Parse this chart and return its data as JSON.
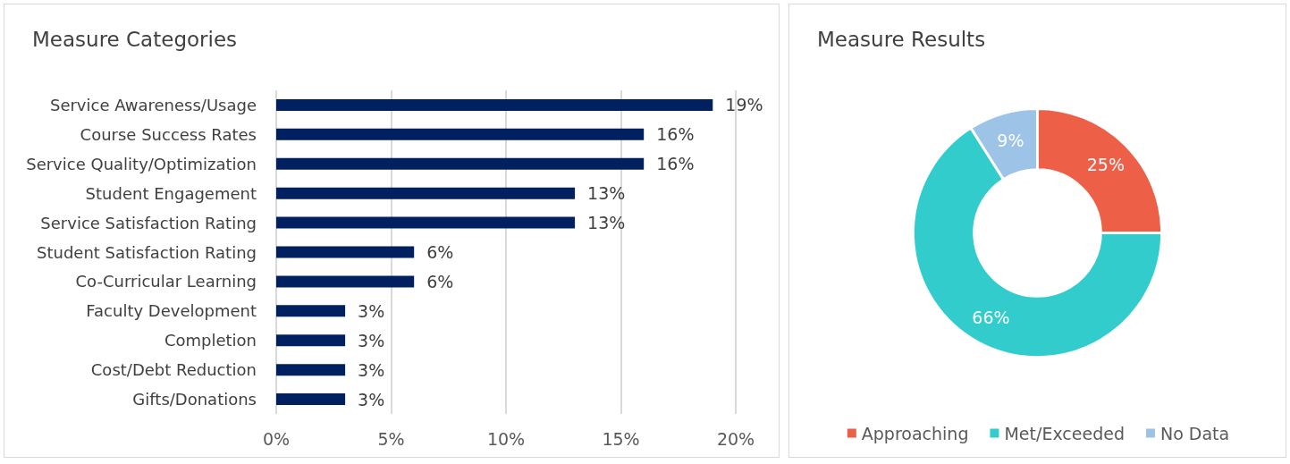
{
  "chart_data": [
    {
      "type": "bar",
      "title": "Measure Categories",
      "orientation": "horizontal",
      "categories": [
        "Service Awareness/Usage",
        "Course Success Rates",
        "Service Quality/Optimization",
        "Student Engagement",
        "Service Satisfaction Rating",
        "Student Satisfaction Rating",
        "Co-Curricular Learning",
        "Faculty Development",
        "Completion",
        "Cost/Debt Reduction",
        "Gifts/Donations"
      ],
      "values": [
        19,
        16,
        16,
        13,
        13,
        6,
        6,
        3,
        3,
        3,
        3
      ],
      "value_labels": [
        "19%",
        "16%",
        "16%",
        "13%",
        "13%",
        "6%",
        "6%",
        "3%",
        "3%",
        "3%",
        "3%"
      ],
      "color": "#002060",
      "xlim": [
        0,
        20
      ],
      "xticks": [
        {
          "value": 0,
          "label": "0%"
        },
        {
          "value": 5,
          "label": "5%"
        },
        {
          "value": 10,
          "label": "10%"
        },
        {
          "value": 15,
          "label": "15%"
        },
        {
          "value": 20,
          "label": "20%"
        }
      ],
      "grid": "x",
      "legend": false
    },
    {
      "type": "donut",
      "title": "Measure Results",
      "categories": [
        "Approaching",
        "Met/Exceeded",
        "No Data"
      ],
      "values": [
        25,
        66,
        9
      ],
      "value_labels": [
        "25%",
        "66%",
        "9%"
      ],
      "colors": [
        "#ee5f48",
        "#33cccc",
        "#9dc3e6"
      ],
      "legend": "bottom"
    }
  ]
}
